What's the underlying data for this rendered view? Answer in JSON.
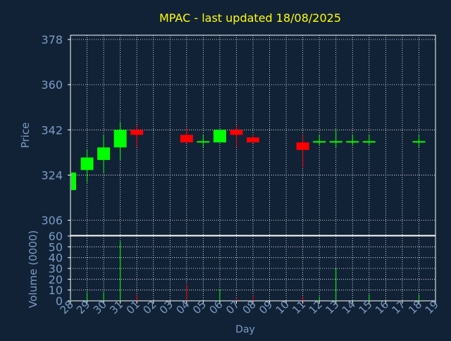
{
  "chart_data": [
    {
      "type": "candlestick",
      "title": "MPAC - last updated 18/08/2025",
      "ylabel": "Price",
      "ylim": [
        300,
        378
      ],
      "yticks": [
        378,
        360,
        342,
        324,
        306
      ],
      "categories": [
        "28",
        "29",
        "30",
        "31",
        "01",
        "02",
        "03",
        "04",
        "05",
        "06",
        "07",
        "08",
        "09",
        "10",
        "11",
        "12",
        "13",
        "14",
        "15",
        "16",
        "17",
        "18",
        "19"
      ],
      "grid": true,
      "colors": {
        "up": "#00ff00",
        "down": "#ff0000",
        "title": "#ffff00",
        "axis_text": "#7a9cc4",
        "frame": "#ffffff",
        "background": "#122236"
      },
      "ohlc": [
        {
          "x": "28",
          "o": 318,
          "h": 325,
          "l": 318,
          "c": 325
        },
        {
          "x": "29",
          "o": 326,
          "h": 334,
          "l": 321,
          "c": 331
        },
        {
          "x": "30",
          "o": 330,
          "h": 340,
          "l": 325,
          "c": 335
        },
        {
          "x": "31",
          "o": 335,
          "h": 345,
          "l": 330,
          "c": 342
        },
        {
          "x": "01",
          "o": 342,
          "h": 344,
          "l": 335,
          "c": 340
        },
        {
          "x": "04",
          "o": 340,
          "h": 343,
          "l": 337,
          "c": 337
        },
        {
          "x": "05",
          "o": 337.5,
          "h": 340,
          "l": 335,
          "c": 337.5
        },
        {
          "x": "06",
          "o": 337,
          "h": 342,
          "l": 337,
          "c": 342
        },
        {
          "x": "07",
          "o": 342,
          "h": 344,
          "l": 335,
          "c": 340
        },
        {
          "x": "08",
          "o": 339,
          "h": 340,
          "l": 337,
          "c": 337
        },
        {
          "x": "11",
          "o": 337,
          "h": 340,
          "l": 327,
          "c": 334
        },
        {
          "x": "12",
          "o": 337.5,
          "h": 340,
          "l": 336,
          "c": 337.5
        },
        {
          "x": "13",
          "o": 337.5,
          "h": 342,
          "l": 335,
          "c": 337.5
        },
        {
          "x": "14",
          "o": 337.5,
          "h": 340,
          "l": 336,
          "c": 337.5
        },
        {
          "x": "15",
          "o": 337.5,
          "h": 340,
          "l": 336,
          "c": 337.5
        },
        {
          "x": "18",
          "o": 337.5,
          "h": 340,
          "l": 335,
          "c": 337.5
        }
      ]
    },
    {
      "type": "bar",
      "ylabel": "Volume (0000)",
      "xlabel": "Day",
      "ylim": [
        0,
        60
      ],
      "yticks": [
        60,
        50,
        40,
        30,
        20,
        10,
        0
      ],
      "categories": [
        "28",
        "29",
        "30",
        "31",
        "01",
        "02",
        "03",
        "04",
        "05",
        "06",
        "07",
        "08",
        "09",
        "10",
        "11",
        "12",
        "13",
        "14",
        "15",
        "16",
        "17",
        "18",
        "19"
      ],
      "grid": true,
      "volumes": [
        {
          "x": "28",
          "v": 1,
          "up": true
        },
        {
          "x": "29",
          "v": 8,
          "up": true
        },
        {
          "x": "30",
          "v": 8,
          "up": true
        },
        {
          "x": "31",
          "v": 55,
          "up": true
        },
        {
          "x": "01",
          "v": 6,
          "up": false
        },
        {
          "x": "04",
          "v": 15,
          "up": false
        },
        {
          "x": "05",
          "v": 1,
          "up": true
        },
        {
          "x": "06",
          "v": 11,
          "up": true
        },
        {
          "x": "07",
          "v": 3,
          "up": false
        },
        {
          "x": "08",
          "v": 5,
          "up": false
        },
        {
          "x": "11",
          "v": 4,
          "up": false
        },
        {
          "x": "12",
          "v": 4,
          "up": true
        },
        {
          "x": "13",
          "v": 30,
          "up": true
        },
        {
          "x": "14",
          "v": 1,
          "up": true
        },
        {
          "x": "15",
          "v": 6,
          "up": true
        },
        {
          "x": "18",
          "v": 6,
          "up": true
        }
      ]
    }
  ]
}
